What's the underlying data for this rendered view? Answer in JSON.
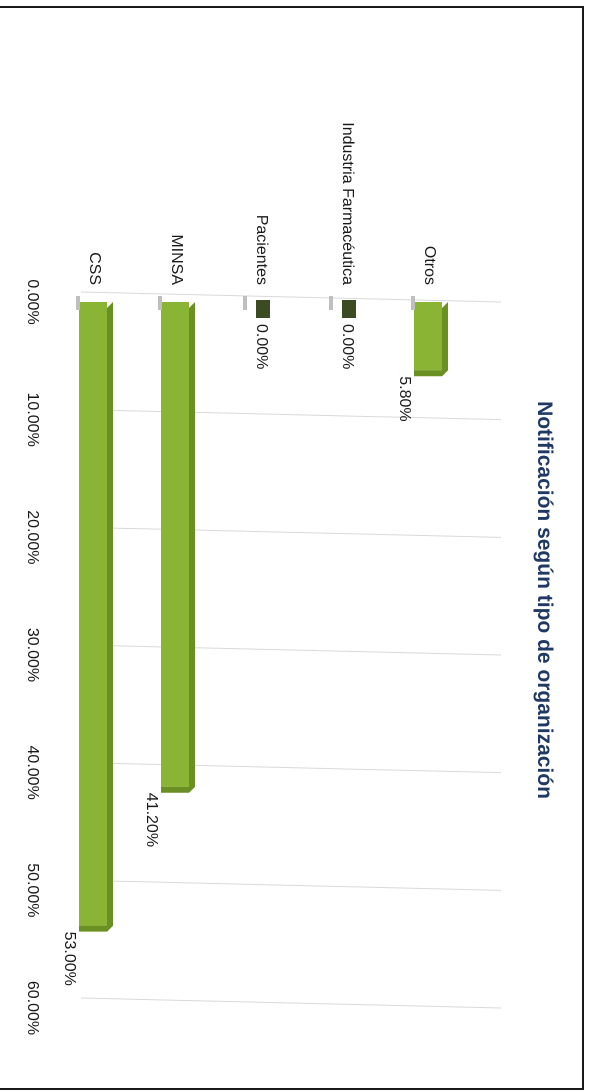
{
  "colors": {
    "bar": "#8ab534",
    "bar_dark": "#6a8f23",
    "zero_bar": "#3c4b22",
    "grid": "#d9d9d9",
    "title": "#1f3864"
  },
  "chart_data": {
    "type": "bar",
    "orientation": "horizontal",
    "title": "Notificación según tipo de organización",
    "categories": [
      "Otros",
      "Industria Farmacéutica",
      "Pacientes",
      "MINSA",
      "CSS"
    ],
    "values": [
      5.8,
      0.0,
      0.0,
      41.2,
      53.0
    ],
    "data_labels": [
      "5.80%",
      "0.00%",
      "0.00%",
      "41.20%",
      "53.00%"
    ],
    "xlim": [
      0,
      60
    ],
    "ticks": [
      0,
      10,
      20,
      30,
      40,
      50,
      60
    ],
    "tick_labels": [
      "0.00%",
      "10.00%",
      "20.00%",
      "30.00%",
      "40.00%",
      "50.00%",
      "60.00%"
    ],
    "grid": true,
    "xlabel": "",
    "ylabel": ""
  }
}
